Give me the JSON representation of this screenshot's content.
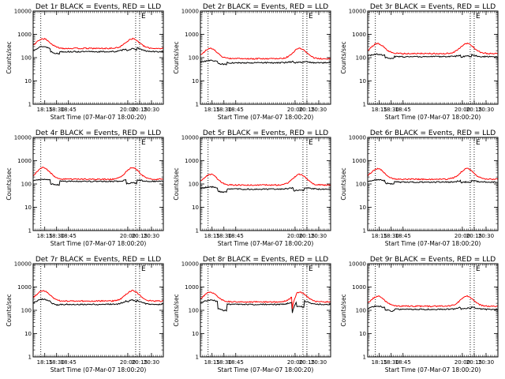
{
  "chart_data": [
    {
      "type": "line",
      "title": "Det 1r BLACK = Events, RED = LLD",
      "corner_label": "E",
      "xlabel": "Start Time (07-Mar-07 18:00:20)",
      "ylabel": "Counts/sec",
      "y_scale": "log",
      "ylim": [
        1,
        10000
      ],
      "xlim": [
        "18:00:20",
        "20:45:00"
      ],
      "x_ticks": [
        "18:15",
        "18:30",
        "18:45",
        "20:00",
        "20:15",
        "20:30"
      ],
      "y_ticks": [
        "1",
        "10",
        "100",
        "1000",
        "10000"
      ],
      "vlines": [
        "18:10",
        "20:10",
        "20:15"
      ],
      "series": [
        {
          "color": "#000000",
          "base": 180,
          "peak": 300,
          "trough": 120
        },
        {
          "color": "#ff0000",
          "base": 250,
          "peak": 650,
          "trough": 250
        }
      ]
    },
    {
      "type": "line",
      "title": "Det 2r BLACK = Events, RED = LLD",
      "corner_label": "E",
      "xlabel": "Start Time (07-Mar-07 18:00:20)",
      "ylabel": "Counts/sec",
      "y_scale": "log",
      "ylim": [
        1,
        10000
      ],
      "xlim": [
        "18:00:20",
        "20:45:00"
      ],
      "x_ticks": [
        "18:15",
        "18:30",
        "18:45",
        "20:00",
        "20:15",
        "20:30"
      ],
      "y_ticks": [
        "1",
        "10",
        "100",
        "1000",
        "10000"
      ],
      "vlines": [
        "18:10",
        "20:10",
        "20:15"
      ],
      "series": [
        {
          "color": "#000000",
          "base": 60,
          "peak": 75,
          "trough": 45
        },
        {
          "color": "#ff0000",
          "base": 90,
          "peak": 250,
          "trough": 80
        }
      ]
    },
    {
      "type": "line",
      "title": "Det 3r BLACK = Events, RED = LLD",
      "corner_label": "E",
      "xlabel": "Start Time (07-Mar-07 18:00:20)",
      "ylabel": "Counts/sec",
      "y_scale": "log",
      "ylim": [
        1,
        10000
      ],
      "xlim": [
        "18:00:20",
        "20:45:00"
      ],
      "x_ticks": [
        "18:15",
        "18:30",
        "18:45",
        "20:00",
        "20:15",
        "20:30"
      ],
      "y_ticks": [
        "1",
        "10",
        "100",
        "1000",
        "10000"
      ],
      "vlines": [
        "18:10",
        "20:10",
        "20:15"
      ],
      "series": [
        {
          "color": "#000000",
          "base": 110,
          "peak": 140,
          "trough": 80
        },
        {
          "color": "#ff0000",
          "base": 150,
          "peak": 400,
          "trough": 140
        }
      ]
    },
    {
      "type": "line",
      "title": "Det 4r BLACK = Events, RED = LLD",
      "corner_label": "E",
      "xlabel": "Start Time (07-Mar-07 18:00:20)",
      "ylabel": "Counts/sec",
      "y_scale": "log",
      "ylim": [
        1,
        10000
      ],
      "xlim": [
        "18:00:20",
        "20:45:00"
      ],
      "x_ticks": [
        "18:15",
        "18:30",
        "18:45",
        "20:00",
        "20:15",
        "20:30"
      ],
      "y_ticks": [
        "1",
        "10",
        "100",
        "1000",
        "10000"
      ],
      "vlines": [
        "18:10",
        "20:10",
        "20:15"
      ],
      "series": [
        {
          "color": "#000000",
          "base": 130,
          "peak": 160,
          "trough": 70
        },
        {
          "color": "#ff0000",
          "base": 160,
          "peak": 500,
          "trough": 150
        }
      ]
    },
    {
      "type": "line",
      "title": "Det 5r BLACK = Events, RED = LLD",
      "corner_label": "E",
      "xlabel": "Start Time (07-Mar-07 18:00:20)",
      "ylabel": "Counts/sec",
      "y_scale": "log",
      "ylim": [
        1,
        10000
      ],
      "xlim": [
        "18:00:20",
        "20:45:00"
      ],
      "x_ticks": [
        "18:15",
        "18:30",
        "18:45",
        "20:00",
        "20:15",
        "20:30"
      ],
      "y_ticks": [
        "1",
        "10",
        "100",
        "1000",
        "10000"
      ],
      "vlines": [
        "18:10",
        "20:10",
        "20:15"
      ],
      "series": [
        {
          "color": "#000000",
          "base": 60,
          "peak": 75,
          "trough": 35
        },
        {
          "color": "#ff0000",
          "base": 90,
          "peak": 260,
          "trough": 80
        }
      ]
    },
    {
      "type": "line",
      "title": "Det 6r BLACK = Events, RED = LLD",
      "corner_label": "E",
      "xlabel": "Start Time (07-Mar-07 18:00:20)",
      "ylabel": "Counts/sec",
      "y_scale": "log",
      "ylim": [
        1,
        10000
      ],
      "xlim": [
        "18:00:20",
        "20:45:00"
      ],
      "x_ticks": [
        "18:15",
        "18:30",
        "18:45",
        "20:00",
        "20:15",
        "20:30"
      ],
      "y_ticks": [
        "1",
        "10",
        "100",
        "1000",
        "10000"
      ],
      "vlines": [
        "18:10",
        "20:10",
        "20:15"
      ],
      "series": [
        {
          "color": "#000000",
          "base": 120,
          "peak": 150,
          "trough": 85
        },
        {
          "color": "#ff0000",
          "base": 160,
          "peak": 450,
          "trough": 150
        }
      ]
    },
    {
      "type": "line",
      "title": "Det 7r BLACK = Events, RED = LLD",
      "corner_label": "E",
      "xlabel": "Start Time (07-Mar-07 18:00:20)",
      "ylabel": "Counts/sec",
      "y_scale": "log",
      "ylim": [
        1,
        10000
      ],
      "xlim": [
        "18:00:20",
        "20:45:00"
      ],
      "x_ticks": [
        "18:15",
        "18:30",
        "18:45",
        "20:00",
        "20:15",
        "20:30"
      ],
      "y_ticks": [
        "1",
        "10",
        "100",
        "1000",
        "10000"
      ],
      "vlines": [
        "18:10",
        "20:10",
        "20:15"
      ],
      "series": [
        {
          "color": "#000000",
          "base": 180,
          "peak": 300,
          "trough": 150
        },
        {
          "color": "#ff0000",
          "base": 250,
          "peak": 700,
          "trough": 250
        }
      ]
    },
    {
      "type": "line",
      "title": "Det 8r BLACK = Events, RED = LLD",
      "corner_label": "E",
      "xlabel": "Start Time (07-Mar-07 18:00:20)",
      "ylabel": "Counts/sec",
      "y_scale": "log",
      "ylim": [
        1,
        10000
      ],
      "xlim": [
        "18:00:20",
        "20:45:00"
      ],
      "x_ticks": [
        "18:15",
        "18:30",
        "18:45",
        "20:00",
        "20:15",
        "20:30"
      ],
      "y_ticks": [
        "1",
        "10",
        "100",
        "1000",
        "10000"
      ],
      "vlines": [
        "18:10",
        "20:10",
        "20:15"
      ],
      "series": [
        {
          "color": "#000000",
          "base": 180,
          "peak": 280,
          "trough": 60
        },
        {
          "color": "#ff0000",
          "base": 230,
          "peak": 600,
          "trough": 70
        }
      ]
    },
    {
      "type": "line",
      "title": "Det 9r BLACK = Events, RED = LLD",
      "corner_label": "E",
      "xlabel": "Start Time (07-Mar-07 18:00:20)",
      "ylabel": "Counts/sec",
      "y_scale": "log",
      "ylim": [
        1,
        10000
      ],
      "xlim": [
        "18:00:20",
        "20:45:00"
      ],
      "x_ticks": [
        "18:15",
        "18:30",
        "18:45",
        "20:00",
        "20:15",
        "20:30"
      ],
      "y_ticks": [
        "1",
        "10",
        "100",
        "1000",
        "10000"
      ],
      "vlines": [
        "18:10",
        "20:10",
        "20:15"
      ],
      "series": [
        {
          "color": "#000000",
          "base": 110,
          "peak": 150,
          "trough": 80
        },
        {
          "color": "#ff0000",
          "base": 150,
          "peak": 400,
          "trough": 140
        }
      ]
    }
  ]
}
